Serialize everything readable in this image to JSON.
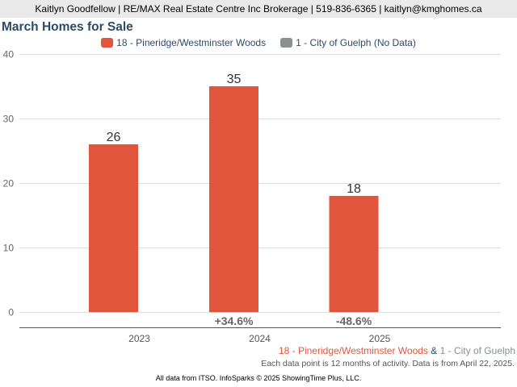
{
  "header": {
    "contact": "Kaitlyn Goodfellow | RE/MAX Real Estate Centre Inc Brokerage | 519-836-6365 | kaitlyn@kmghomes.ca"
  },
  "chart_data": {
    "type": "bar",
    "title": "March Homes for Sale",
    "categories": [
      "2023",
      "2024",
      "2025"
    ],
    "series": [
      {
        "name": "18 - Pineridge/Westminster Woods",
        "values": [
          26,
          35,
          18
        ],
        "color": "#e2553d"
      },
      {
        "name": "1 - City of Guelph (No Data)",
        "values": [
          null,
          null,
          null
        ],
        "color": "#8a918f"
      }
    ],
    "value_labels": [
      "26",
      "35",
      "18"
    ],
    "change_labels": [
      "",
      "+34.6%",
      "-48.6%"
    ],
    "ylim": [
      0,
      40
    ],
    "yticks": [
      0,
      10,
      20,
      30,
      40
    ],
    "ytick_labels": [
      "0",
      "10",
      "20",
      "30",
      "40"
    ],
    "grid": true,
    "legend_position": "top-center",
    "xlabel": "",
    "ylabel": ""
  },
  "footer": {
    "area_primary": "18 - Pineridge/Westminster Woods",
    "ampersand": "&",
    "area_secondary": "1 - City of Guelph",
    "note": "Each data point is 12 months of activity. Data is from April 22, 2025.",
    "source": "All data from ITSO. InfoSparks © 2025 ShowingTime Plus, LLC."
  },
  "colors": {
    "primary": "#e2553d",
    "secondary": "#8a918f",
    "title": "#2c4a6a",
    "ampersand": "#2c4a6a"
  }
}
